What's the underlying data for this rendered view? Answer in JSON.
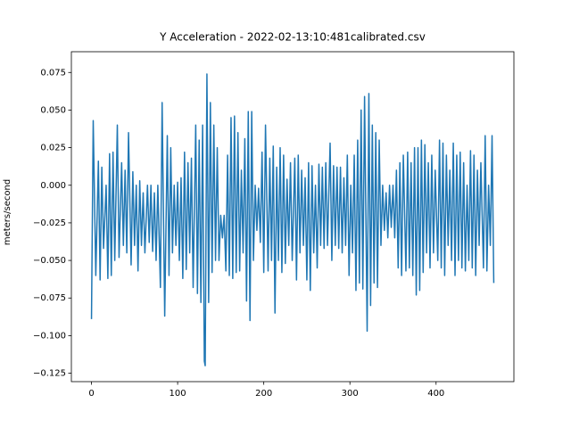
{
  "chart_data": {
    "type": "line",
    "title": "Y Acceleration - 2022-02-13:10:481calibrated.csv",
    "y_label": "meters/second",
    "xlim": [
      -23.35,
      490.35
    ],
    "ylim": [
      -0.1306,
      0.0888
    ],
    "xticks": [
      0,
      100,
      200,
      300,
      400
    ],
    "yticks": [
      {
        "value": -0.125,
        "label": "−0.125"
      },
      {
        "value": -0.1,
        "label": "−0.100"
      },
      {
        "value": -0.075,
        "label": "−0.075"
      },
      {
        "value": -0.05,
        "label": "−0.050"
      },
      {
        "value": -0.025,
        "label": "−0.025"
      },
      {
        "value": 0,
        "label": "0.000"
      },
      {
        "value": 0.025,
        "label": "0.025"
      },
      {
        "value": 0.05,
        "label": "0.050"
      },
      {
        "value": 0.075,
        "label": "0.075"
      }
    ],
    "grid": false,
    "series": [
      {
        "color": "#1f77b4",
        "x": [
          0,
          2,
          5,
          8,
          10,
          12,
          14,
          17,
          19,
          21,
          23,
          25,
          27,
          30,
          32,
          35,
          37,
          39,
          41,
          43,
          46,
          48,
          50,
          52,
          54,
          56,
          58,
          60,
          62,
          65,
          67,
          69,
          71,
          73,
          75,
          77,
          80,
          82,
          85,
          88,
          90,
          92,
          94,
          96,
          98,
          100,
          102,
          104,
          106,
          108,
          110,
          112,
          114,
          116,
          118,
          121,
          123,
          125,
          127,
          129,
          131,
          132,
          134,
          136,
          138,
          140,
          142,
          144,
          146,
          148,
          150,
          152,
          154,
          156,
          158,
          160,
          162,
          164,
          166,
          168,
          170,
          172,
          174,
          176,
          178,
          180,
          182,
          184,
          186,
          188,
          190,
          192,
          194,
          196,
          198,
          200,
          202,
          205,
          207,
          209,
          211,
          213,
          215,
          217,
          219,
          221,
          223,
          225,
          227,
          229,
          231,
          233,
          236,
          238,
          240,
          242,
          244,
          246,
          248,
          250,
          252,
          254,
          256,
          258,
          260,
          262,
          264,
          266,
          268,
          270,
          272,
          274,
          277,
          279,
          281,
          283,
          285,
          287,
          289,
          291,
          293,
          295,
          297,
          299,
          301,
          303,
          305,
          307,
          309,
          311,
          313,
          315,
          317,
          320,
          322,
          324,
          326,
          328,
          330,
          332,
          334,
          336,
          338,
          340,
          342,
          344,
          346,
          348,
          350,
          352,
          354,
          356,
          358,
          360,
          362,
          365,
          367,
          369,
          371,
          373,
          375,
          377,
          379,
          381,
          383,
          385,
          387,
          389,
          391,
          393,
          395,
          397,
          399,
          402,
          404,
          406,
          408,
          410,
          412,
          414,
          416,
          418,
          420,
          422,
          424,
          426,
          428,
          430,
          432,
          434,
          436,
          438,
          440,
          442,
          444,
          446,
          448,
          450,
          452,
          455,
          457,
          459,
          461,
          463,
          465,
          467
        ],
        "values": [
          -0.089,
          0.043,
          -0.06,
          0.016,
          -0.063,
          0.012,
          -0.042,
          0.0,
          -0.062,
          0.021,
          -0.06,
          0.022,
          -0.05,
          0.04,
          -0.048,
          0.015,
          -0.04,
          0.01,
          -0.045,
          0.035,
          -0.053,
          0.009,
          -0.04,
          0.0,
          -0.057,
          0.003,
          -0.04,
          -0.005,
          -0.045,
          0.0,
          -0.038,
          0.0,
          -0.044,
          -0.005,
          -0.05,
          0.0,
          -0.068,
          0.055,
          -0.087,
          0.033,
          -0.06,
          0.025,
          -0.045,
          0.0,
          -0.04,
          0.002,
          -0.05,
          0.005,
          -0.062,
          0.022,
          -0.056,
          0.015,
          -0.045,
          0.018,
          -0.068,
          0.04,
          -0.072,
          0.03,
          -0.078,
          0.04,
          -0.117,
          -0.12,
          0.074,
          -0.078,
          0.055,
          -0.058,
          0.04,
          -0.05,
          0.025,
          -0.05,
          -0.02,
          -0.035,
          -0.02,
          -0.057,
          0.02,
          -0.06,
          0.045,
          -0.062,
          0.046,
          -0.058,
          0.035,
          -0.057,
          0.01,
          -0.045,
          0.031,
          -0.077,
          0.049,
          -0.09,
          0.049,
          -0.05,
          0.0,
          -0.03,
          -0.002,
          -0.038,
          0.022,
          -0.058,
          0.04,
          -0.057,
          0.018,
          -0.05,
          0.026,
          -0.085,
          0.012,
          -0.05,
          0.025,
          -0.058,
          0.02,
          -0.052,
          0.004,
          -0.04,
          0.015,
          -0.05,
          0.018,
          -0.063,
          0.02,
          -0.045,
          0.01,
          -0.04,
          0.005,
          -0.063,
          0.015,
          -0.07,
          0.013,
          -0.045,
          0.0,
          -0.055,
          0.014,
          -0.04,
          0.012,
          -0.042,
          0.015,
          -0.04,
          0.028,
          -0.05,
          0.013,
          -0.04,
          0.012,
          -0.042,
          0.012,
          -0.045,
          0.005,
          -0.04,
          0.02,
          -0.06,
          0.0,
          -0.045,
          0.02,
          -0.07,
          0.03,
          -0.065,
          0.05,
          -0.069,
          0.059,
          -0.097,
          0.061,
          -0.08,
          0.04,
          -0.065,
          0.035,
          -0.068,
          0.03,
          -0.04,
          0.0,
          -0.03,
          -0.005,
          -0.035,
          0.0,
          -0.028,
          0.0,
          -0.035,
          0.01,
          -0.055,
          0.015,
          -0.06,
          0.02,
          -0.057,
          0.022,
          -0.055,
          0.015,
          -0.06,
          0.025,
          -0.073,
          0.025,
          -0.07,
          0.03,
          -0.058,
          0.027,
          -0.045,
          0.015,
          -0.055,
          0.02,
          -0.045,
          0.01,
          -0.05,
          0.03,
          -0.055,
          0.028,
          -0.06,
          0.02,
          -0.04,
          0.01,
          -0.05,
          0.028,
          -0.06,
          0.02,
          -0.05,
          0.022,
          -0.055,
          0.015,
          -0.057,
          0.0,
          -0.05,
          0.023,
          -0.055,
          0.02,
          -0.06,
          0.01,
          -0.04,
          0.015,
          -0.055,
          0.033,
          -0.057,
          0.0,
          -0.04,
          0.033,
          -0.065
        ]
      }
    ]
  }
}
